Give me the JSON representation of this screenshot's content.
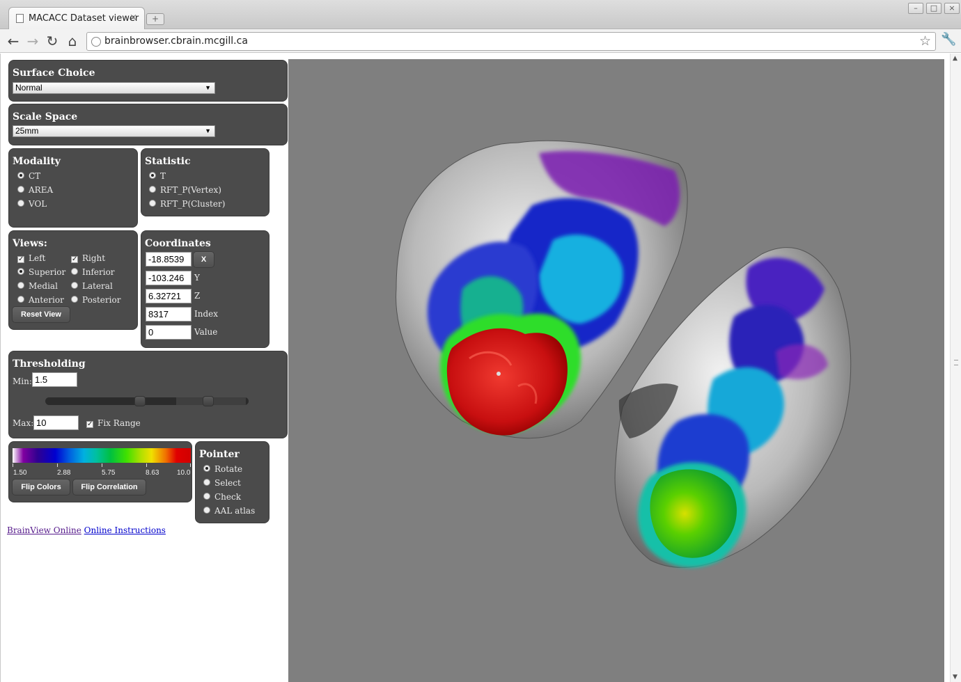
{
  "browser": {
    "tab_title": "MACACC Dataset viewer",
    "tab_close": "×",
    "new_tab": "+",
    "url": "brainbrowser.cbrain.mcgill.ca",
    "window_buttons": [
      "–",
      "□",
      "×"
    ]
  },
  "surface": {
    "title": "Surface Choice",
    "selected": "Normal"
  },
  "scale": {
    "title": "Scale Space",
    "selected": "25mm"
  },
  "modality": {
    "title": "Modality",
    "options": [
      {
        "label": "CT",
        "selected": true
      },
      {
        "label": "AREA",
        "selected": false
      },
      {
        "label": "VOL",
        "selected": false
      }
    ]
  },
  "statistic": {
    "title": "Statistic",
    "options": [
      {
        "label": "T",
        "selected": true
      },
      {
        "label": "RFT_P(Vertex)",
        "selected": false
      },
      {
        "label": "RFT_P(Cluster)",
        "selected": false
      }
    ]
  },
  "views": {
    "title": "Views:",
    "left": "Left",
    "right": "Right",
    "superior": "Superior",
    "inferior": "Inferior",
    "medial": "Medial",
    "lateral": "Lateral",
    "anterior": "Anterior",
    "posterior": "Posterior",
    "reset_label": "Reset View"
  },
  "coordinates": {
    "title": "Coordinates",
    "x_value": "-18.8539",
    "x_button": "X",
    "y_value": "-103.246",
    "y_label": "Y",
    "z_value": "6.32721",
    "z_label": "Z",
    "index_value": "8317",
    "index_label": "Index",
    "value_value": "0",
    "value_label": "Value"
  },
  "threshold": {
    "title": "Thresholding",
    "min_label": "Min:",
    "min_value": "1.5",
    "max_label": "Max:",
    "max_value": "10",
    "fix_range_label": "Fix Range"
  },
  "colorscale": {
    "ticks": [
      "1.50",
      "2.88",
      "5.75",
      "8.63",
      "10.0"
    ],
    "flip_colors_label": "Flip Colors",
    "flip_correlation_label": "Flip Correlation"
  },
  "pointer": {
    "title": "Pointer",
    "options": [
      {
        "label": "Rotate",
        "selected": true
      },
      {
        "label": "Select",
        "selected": false
      },
      {
        "label": "Check",
        "selected": false
      },
      {
        "label": "AAL atlas",
        "selected": false
      }
    ]
  },
  "links": {
    "brainview": "BrainView Online",
    "instructions": "Online Instructions"
  },
  "colors": {
    "panel_bg": "#4b4b4b",
    "canvas_bg": "#7f7f7f",
    "link_visited": "#551a8b",
    "link": "#0000cc"
  }
}
